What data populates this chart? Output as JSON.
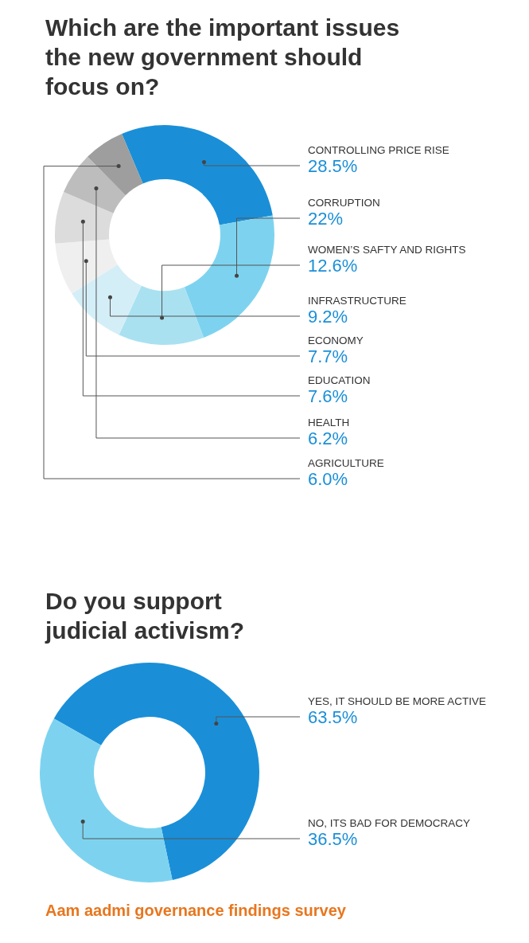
{
  "chart_data": [
    {
      "type": "donut",
      "title": "Which are the important issues the new government should focus on?",
      "categories": [
        "CONTROLLING PRICE RISE",
        "CORRUPTION",
        "WOMEN’S SAFTY AND RIGHTS",
        "INFRASTRUCTURE",
        "ECONOMY",
        "EDUCATION",
        "HEALTH",
        "AGRICULTURE"
      ],
      "values": [
        28.5,
        22,
        12.6,
        9.2,
        7.7,
        7.6,
        6.2,
        6.0
      ],
      "value_labels": [
        "28.5%",
        "22%",
        "12.6%",
        "9.2%",
        "7.7%",
        "7.6%",
        "6.2%",
        "6.0%"
      ],
      "colors": [
        "#1a8fd8",
        "#7dd3ef",
        "#a9e1f1",
        "#d4eef7",
        "#efefef",
        "#dcdcdc",
        "#bdbdbd",
        "#9e9e9e"
      ]
    },
    {
      "type": "donut",
      "title": "Do you support judicial activism?",
      "categories": [
        "YES, IT SHOULD BE MORE ACTIVE",
        "NO, ITS BAD FOR DEMOCRACY"
      ],
      "values": [
        63.5,
        36.5
      ],
      "value_labels": [
        "63.5%",
        "36.5%"
      ],
      "colors": [
        "#1a8fd8",
        "#7dd3ef"
      ],
      "annotations": [
        "Aam aadmi governance findings survey"
      ]
    }
  ]
}
